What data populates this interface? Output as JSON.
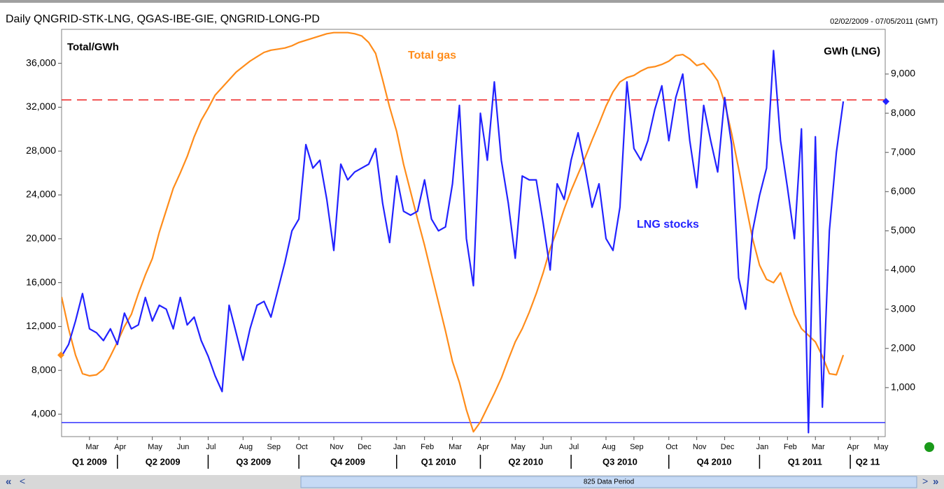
{
  "chart_data": {
    "type": "line",
    "title": "Daily QNGRID-STK-LNG, QGAS-IBE-GIE, QNGRID-LONG-PD",
    "date_range": "02/02/2009 - 07/05/2011 (GMT)",
    "y_label": "Total/GWh",
    "y2_label": "GWh (LNG)",
    "annotations": [
      "Total gas",
      "LNG stocks"
    ],
    "categories": [
      null,
      null,
      null,
      null,
      "Mar",
      null,
      null,
      null,
      "Apr",
      null,
      null,
      null,
      null,
      "May",
      null,
      null,
      null,
      "Jun",
      null,
      null,
      null,
      "Jul",
      null,
      null,
      null,
      null,
      "Aug",
      null,
      null,
      null,
      "Sep",
      null,
      null,
      null,
      "Oct",
      null,
      null,
      null,
      null,
      "Nov",
      null,
      null,
      null,
      "Dec",
      null,
      null,
      null,
      null,
      "Jan",
      null,
      null,
      null,
      "Feb",
      null,
      null,
      null,
      "Mar",
      null,
      null,
      null,
      "Apr",
      null,
      null,
      null,
      null,
      "May",
      null,
      null,
      null,
      "Jun",
      null,
      null,
      null,
      "Jul",
      null,
      null,
      null,
      null,
      "Aug",
      null,
      null,
      null,
      "Sep",
      null,
      null,
      null,
      null,
      "Oct",
      null,
      null,
      null,
      "Nov",
      null,
      null,
      null,
      "Dec",
      null,
      null,
      null,
      null,
      "Jan",
      null,
      null,
      null,
      "Feb",
      null,
      null,
      null,
      "Mar",
      null,
      null,
      null,
      null,
      "Apr",
      null,
      null,
      null,
      "May"
    ],
    "quarters": [
      "Q1 2009",
      "Q2 2009",
      "Q3 2009",
      "Q4 2009",
      "Q1 2010",
      "Q2 2010",
      "Q3 2010",
      "Q4 2010",
      "Q1 2011",
      "Q2 11"
    ],
    "series": [
      {
        "name": "Total gas",
        "color": "#ff8c1a",
        "axis": "y",
        "values": [
          14700,
          11800,
          9400,
          7700,
          7500,
          7600,
          8100,
          9300,
          10600,
          12000,
          13100,
          15000,
          16700,
          18200,
          20600,
          22600,
          24600,
          26000,
          27500,
          29300,
          30800,
          31900,
          33100,
          33800,
          34500,
          35200,
          35700,
          36200,
          36600,
          37000,
          37200,
          37300,
          37400,
          37600,
          37900,
          38100,
          38300,
          38500,
          38700,
          38800,
          38800,
          38800,
          38700,
          38500,
          37900,
          36900,
          34500,
          32000,
          29800,
          26800,
          24300,
          21800,
          19400,
          16800,
          14200,
          11600,
          8800,
          6900,
          4400,
          2400,
          3300,
          4600,
          5900,
          7300,
          9000,
          10600,
          11800,
          13300,
          15000,
          16900,
          19100,
          20800,
          22700,
          24400,
          25900,
          27400,
          29000,
          30500,
          32100,
          33400,
          34300,
          34700,
          34900,
          35300,
          35600,
          35700,
          35900,
          36200,
          36700,
          36800,
          36400,
          35800,
          36000,
          35300,
          34400,
          32400,
          29600,
          26400,
          23200,
          20000,
          17600,
          16300,
          16000,
          16900,
          15000,
          13100,
          11800,
          11200,
          10600,
          9300,
          7700,
          7600,
          9400,
          null,
          null,
          null,
          null,
          null
        ]
      },
      {
        "name": "LNG stocks",
        "color": "#2222ff",
        "axis": "y2",
        "values": [
          1800,
          2100,
          2700,
          3400,
          2500,
          2400,
          2200,
          2500,
          2100,
          2900,
          2500,
          2600,
          3300,
          2700,
          3100,
          3000,
          2500,
          3300,
          2600,
          2800,
          2200,
          1800,
          1300,
          900,
          3100,
          2400,
          1700,
          2500,
          3100,
          3200,
          2800,
          3500,
          4200,
          5000,
          5300,
          7200,
          6600,
          6800,
          5800,
          4500,
          6700,
          6300,
          6500,
          6600,
          6700,
          7100,
          5700,
          4700,
          6400,
          5500,
          5400,
          5500,
          6300,
          5300,
          5000,
          5100,
          6200,
          8200,
          4800,
          3600,
          8000,
          6800,
          8800,
          6800,
          5700,
          4300,
          6400,
          6300,
          6300,
          5200,
          4000,
          6200,
          5800,
          6800,
          7500,
          6600,
          5600,
          6200,
          4800,
          4500,
          5600,
          8800,
          7100,
          6800,
          7300,
          8100,
          8700,
          7300,
          8400,
          9000,
          7300,
          6100,
          8200,
          7300,
          6500,
          8400,
          7200,
          3800,
          3000,
          5000,
          5900,
          6600,
          9600,
          7300,
          6100,
          4800,
          7600,
          -150,
          7400,
          500,
          5000,
          7000,
          8300,
          null,
          null,
          null,
          null,
          null
        ]
      }
    ],
    "reference_lines": [
      {
        "axis": "y2",
        "value": 8340,
        "color": "#ee2222",
        "dashed": true
      },
      {
        "axis": "y",
        "value": 3240,
        "color": "#3333ff",
        "dashed": false
      }
    ],
    "ylim": [
      1960,
      39100
    ],
    "yticks": [
      {
        "value": 4000,
        "label": "4,000"
      },
      {
        "value": 8000,
        "label": "8,000"
      },
      {
        "value": 12000,
        "label": "12,000"
      },
      {
        "value": 16000,
        "label": "16,000"
      },
      {
        "value": 20000,
        "label": "20,000"
      },
      {
        "value": 24000,
        "label": "24,000"
      },
      {
        "value": 28000,
        "label": "28,000"
      },
      {
        "value": 32000,
        "label": "32,000"
      },
      {
        "value": 36000,
        "label": "36,000"
      }
    ],
    "y2lim": [
      -250,
      10140
    ],
    "y2ticks": [
      {
        "value": 1000,
        "label": "1,000"
      },
      {
        "value": 2000,
        "label": "2,000"
      },
      {
        "value": 3000,
        "label": "3,000"
      },
      {
        "value": 4000,
        "label": "4,000"
      },
      {
        "value": 5000,
        "label": "5,000"
      },
      {
        "value": 6000,
        "label": "6,000"
      },
      {
        "value": 7000,
        "label": "7,000"
      },
      {
        "value": 8000,
        "label": "8,000"
      },
      {
        "value": 9000,
        "label": "9,000"
      }
    ],
    "grid": false,
    "scrollbar": {
      "first": "«",
      "prev": "<",
      "label": "825 Data Period",
      "next": ">",
      "last": "»"
    }
  }
}
